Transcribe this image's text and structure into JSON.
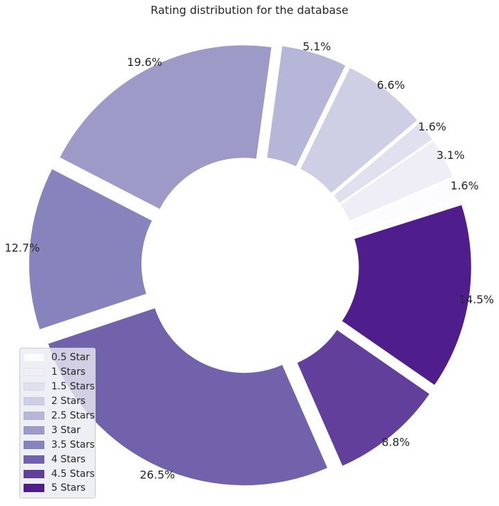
{
  "chart_data": {
    "type": "pie",
    "title": "Rating distribution for the database",
    "donut": true,
    "exploded": true,
    "legend_position": "bottom-left",
    "categories": [
      "0.5 Star",
      "1 Stars",
      "1.5 Stars",
      "2 Stars",
      "2.5 Stars",
      "3 Star",
      "3.5 Stars",
      "4 Stars",
      "4.5 Stars",
      "5 Stars"
    ],
    "values": [
      1.6,
      3.1,
      1.6,
      6.6,
      5.1,
      19.6,
      12.7,
      26.5,
      8.8,
      14.5
    ],
    "labels": [
      "1.6%",
      "3.1%",
      "1.6%",
      "6.6%",
      "5.1%",
      "19.6%",
      "12.7%",
      "26.5%",
      "8.8%",
      "14.5%"
    ],
    "colors": [
      "#fcfbfd",
      "#efedf5",
      "#e1e0ee",
      "#cecee5",
      "#b6b6d8",
      "#9e9ac8",
      "#8683bd",
      "#7262ac",
      "#613f9b",
      "#4f1e8c"
    ]
  }
}
